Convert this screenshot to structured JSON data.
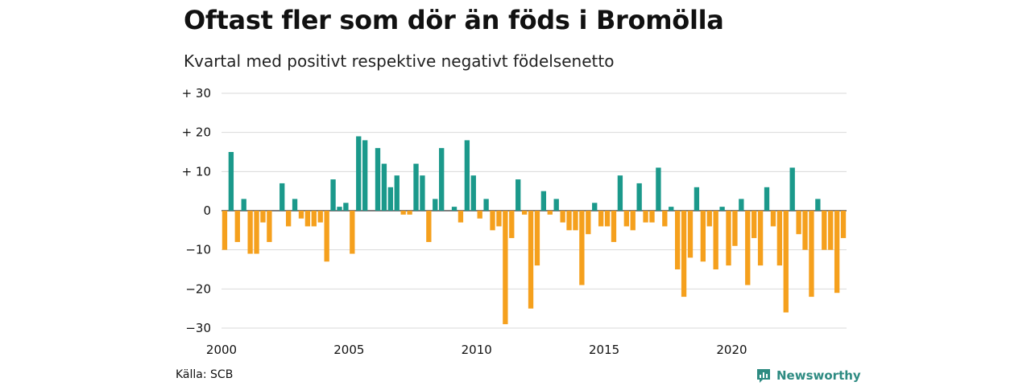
{
  "title": "Oftast fler som dör än föds i Bromölla",
  "subtitle": "Kvartal med positivt respektive negativt födelsenetto",
  "source": "Källa: SCB",
  "brand": "Newsworthy",
  "colors": {
    "positive": "#1b998b",
    "negative": "#f5a01d",
    "grid": "#d9d9d9",
    "zero": "#333333",
    "brand": "#2e8b82"
  },
  "chart_data": {
    "type": "bar",
    "x_start": "2000 Q1",
    "x_tick_labels": [
      "2000",
      "2005",
      "2010",
      "2015",
      "2020"
    ],
    "y_tick_labels": [
      "+ 30",
      "+ 20",
      "+ 10",
      "0",
      "−10",
      "−20",
      "−30"
    ],
    "y_ticks": [
      30,
      20,
      10,
      0,
      -10,
      -20,
      -30
    ],
    "ylim": [
      -30,
      30
    ],
    "grid": true,
    "values": [
      -10,
      15,
      -8,
      3,
      -11,
      -11,
      -3,
      -8,
      0,
      7,
      -4,
      3,
      -2,
      -4,
      -4,
      -3,
      -13,
      8,
      1,
      2,
      -11,
      19,
      18,
      0,
      16,
      12,
      6,
      9,
      -1,
      -1,
      12,
      9,
      -8,
      3,
      16,
      0,
      1,
      -3,
      18,
      9,
      -2,
      3,
      -5,
      -4,
      -29,
      -7,
      8,
      -1,
      -25,
      -14,
      5,
      -1,
      3,
      -3,
      -5,
      -5,
      -19,
      -6,
      2,
      -4,
      -4,
      -8,
      9,
      -4,
      -5,
      7,
      -3,
      -3,
      11,
      -4,
      1,
      -15,
      -22,
      -12,
      6,
      -13,
      -4,
      -15,
      1,
      -14,
      -9,
      3,
      -19,
      -7,
      -14,
      6,
      -4,
      -14,
      -26,
      11,
      -6,
      -10,
      -22,
      3,
      -10,
      -10,
      -21,
      -7
    ]
  }
}
